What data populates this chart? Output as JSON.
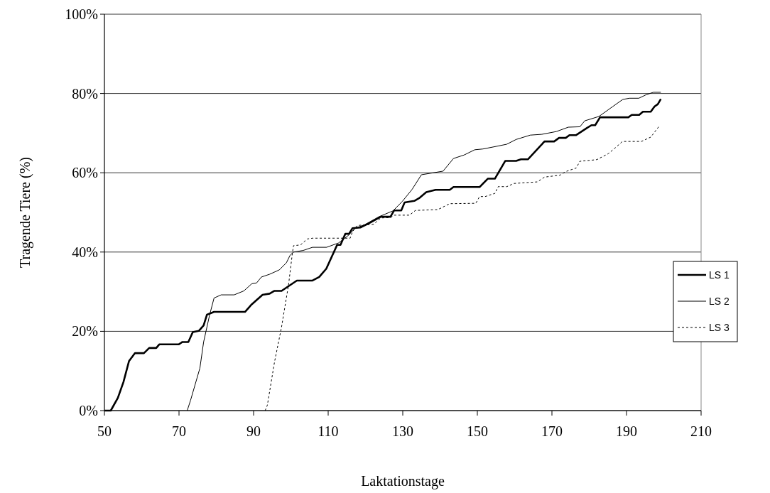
{
  "chart_data": {
    "type": "line",
    "xlabel": "Laktationstage",
    "ylabel": "Tragende Tiere (%)",
    "xlim": [
      50,
      210
    ],
    "xticks": [
      50,
      70,
      90,
      110,
      130,
      150,
      170,
      190,
      210
    ],
    "ylim": [
      0,
      100
    ],
    "yticks": [
      {
        "value": 0,
        "label": "0%"
      },
      {
        "value": 20,
        "label": "20%"
      },
      {
        "value": 40,
        "label": "40%"
      },
      {
        "value": 60,
        "label": "60%"
      },
      {
        "value": 80,
        "label": "80%"
      },
      {
        "value": 100,
        "label": "100%"
      }
    ],
    "grid": "y",
    "legend": "right",
    "series": [
      {
        "name": "LS 1",
        "color": "#000000",
        "line_style": "solid",
        "x": [
          50,
          51.7,
          53.6,
          55.1,
          56.6,
          58.2,
          60.6,
          62,
          63.9,
          64.7,
          69.9,
          70.9,
          72.5,
          73.7,
          75.3,
          76.6,
          77.5,
          79.4,
          87.7,
          89.5,
          92.4,
          94.3,
          95.6,
          97.5,
          99.4,
          101.6,
          105.8,
          107.6,
          109.5,
          112.4,
          113.3,
          114.6,
          115.6,
          116.5,
          118.7,
          121,
          124.1,
          126.7,
          127.7,
          129.6,
          130.5,
          133.1,
          134.4,
          136.3,
          138.8,
          142.6,
          143.6,
          150.6,
          152.8,
          154.7,
          157.5,
          160.4,
          161.7,
          163.6,
          168,
          170.6,
          171.9,
          173.7,
          174.7,
          176.5,
          179.4,
          180.6,
          181.6,
          182.9,
          190.5,
          191.4,
          193.4,
          194.4,
          196.5,
          197.5,
          198.4,
          199.2
        ],
        "values": [
          0,
          0,
          3.2,
          7.2,
          12.5,
          14.5,
          14.5,
          15.8,
          15.8,
          16.7,
          16.7,
          17.3,
          17.3,
          19.8,
          20.1,
          21.5,
          24.2,
          24.9,
          24.9,
          26.8,
          29.2,
          29.5,
          30.2,
          30.2,
          31.4,
          32.8,
          32.8,
          33.7,
          35.8,
          41.8,
          41.8,
          44.6,
          44.6,
          46,
          46.2,
          47.3,
          48.9,
          48.9,
          50.5,
          50.5,
          52.5,
          52.9,
          53.6,
          55.1,
          55.7,
          55.7,
          56.4,
          56.4,
          58.5,
          58.5,
          63,
          63,
          63.4,
          63.4,
          67.9,
          67.9,
          68.8,
          68.8,
          69.5,
          69.5,
          71.3,
          72,
          72,
          74,
          74,
          74.6,
          74.6,
          75.4,
          75.4,
          76.7,
          77.3,
          78.6
        ]
      },
      {
        "name": "LS 2",
        "color": "#000000",
        "line_style": "solid",
        "x": [
          72.2,
          73.1,
          75.6,
          76.6,
          78.2,
          79.4,
          81.3,
          84.8,
          87.4,
          89.5,
          90.8,
          92.1,
          94.3,
          96.9,
          98.8,
          99.8,
          100.7,
          103.3,
          105.8,
          109.6,
          112.8,
          115.3,
          117.2,
          119.8,
          123.6,
          127.4,
          129.9,
          132.5,
          135,
          137.6,
          140.8,
          143.6,
          146.5,
          149.3,
          151.5,
          155.3,
          157.9,
          160.4,
          164.2,
          167.3,
          171.2,
          174.4,
          177.5,
          178.8,
          182.6,
          186.3,
          189,
          190.8,
          193.3,
          195.3,
          197.2,
          199.2
        ],
        "values": [
          0,
          2.6,
          10.7,
          17.3,
          24.1,
          28.4,
          29.2,
          29.2,
          30.2,
          32,
          32.2,
          33.7,
          34.4,
          35.5,
          37.3,
          39.2,
          40,
          40.4,
          41.2,
          41.2,
          42.3,
          44.1,
          46,
          46.9,
          48.9,
          50.4,
          52.8,
          55.8,
          59.5,
          59.9,
          60.4,
          63.6,
          64.5,
          65.8,
          66,
          66.7,
          67.2,
          68.4,
          69.5,
          69.7,
          70.4,
          71.5,
          71.6,
          73.1,
          74.2,
          76.7,
          78.5,
          78.8,
          78.8,
          79.7,
          80.3,
          80.3
        ]
      },
      {
        "name": "LS 3",
        "color": "#000000",
        "line_style": "dotted",
        "x": [
          93.1,
          93.7,
          95.6,
          97.5,
          99.4,
          100.4,
          100.7,
          102.6,
          104.4,
          105.8,
          115.9,
          116.5,
          117.8,
          122.2,
          124.1,
          126.7,
          127.7,
          131.8,
          133.4,
          139.4,
          141.3,
          142.6,
          149.6,
          150.6,
          152.1,
          154.7,
          155.6,
          157.9,
          159.8,
          166.1,
          168,
          172.2,
          173.7,
          176.5,
          177.5,
          182,
          185.1,
          187,
          188.9,
          194,
          196.5,
          198.7
        ],
        "values": [
          0,
          1.4,
          12.2,
          21.1,
          31.9,
          39.7,
          41.6,
          41.8,
          43.3,
          43.5,
          43.5,
          45.1,
          46.7,
          47,
          48.6,
          48.7,
          49.3,
          49.3,
          50.5,
          50.7,
          51.6,
          52.2,
          52.3,
          54,
          54,
          54.8,
          56.5,
          56.5,
          57.3,
          57.7,
          58.9,
          59.4,
          60.3,
          61.2,
          62.9,
          63.3,
          64.8,
          66.3,
          67.9,
          67.9,
          69,
          71.7
        ]
      }
    ]
  }
}
